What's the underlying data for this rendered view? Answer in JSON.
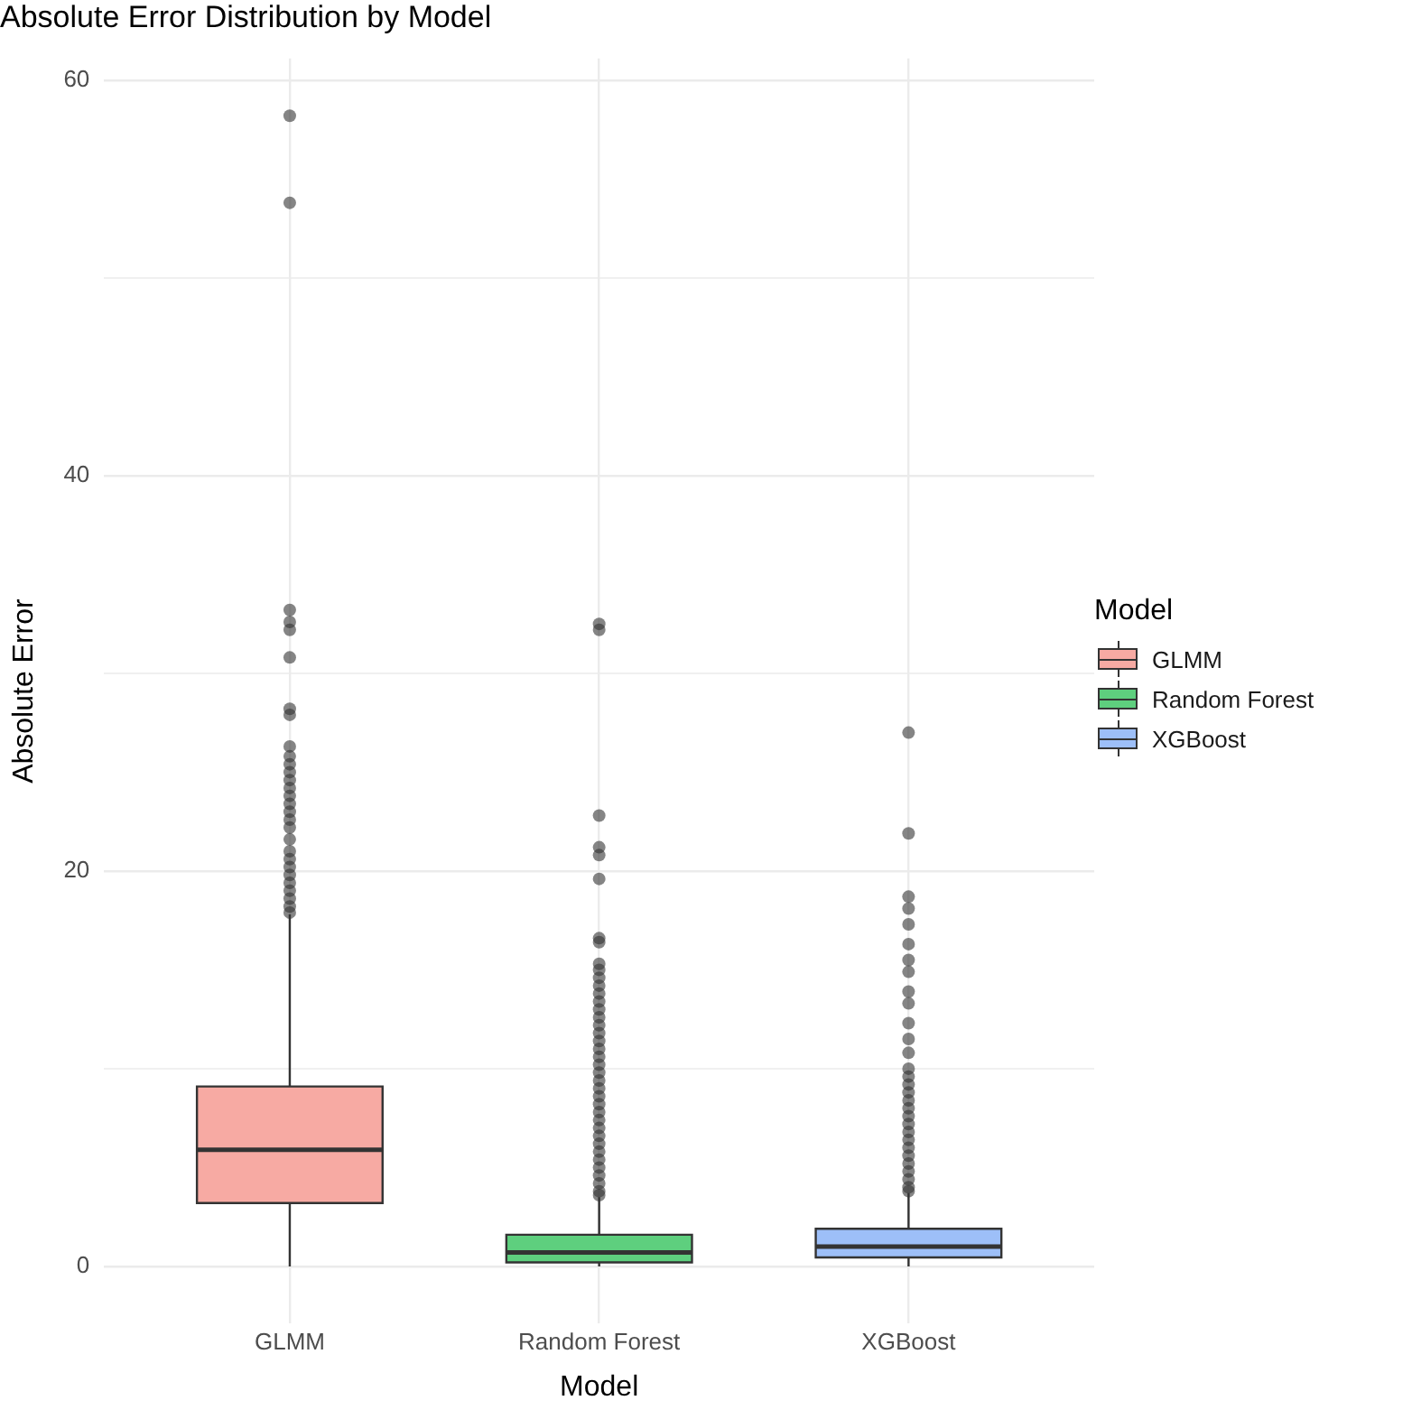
{
  "chart_data": {
    "type": "box",
    "title": "Absolute Error Distribution by Model",
    "xlabel": "Model",
    "ylabel": "Absolute Error",
    "legend_title": "Model",
    "legend": "right",
    "grid": true,
    "categories": [
      "GLMM",
      "Random Forest",
      "XGBoost"
    ],
    "ylim": [
      -2.9,
      61.1
    ],
    "yticks": [
      0,
      {
        "value": 10,
        "label": null
      },
      20,
      {
        "value": 30,
        "label": null
      },
      40,
      {
        "value": 50,
        "label": null
      },
      60
    ],
    "series": [
      {
        "name": "GLMM",
        "color": "#f7aaa3",
        "boxes": [
          {
            "low": 0,
            "q1": 3.2,
            "median": 5.9,
            "q3": 9.1,
            "high": 17.8,
            "outliers": [
              58.2,
              53.8,
              33.2,
              32.6,
              32.2,
              30.8,
              28.2,
              27.9,
              26.3,
              25.8,
              25.4,
              25.0,
              24.6,
              24.2,
              23.8,
              23.4,
              23.0,
              22.6,
              22.2,
              21.6,
              21.0,
              20.6,
              20.2,
              19.8,
              19.4,
              19.0,
              18.6,
              18.2,
              17.9
            ]
          },
          null,
          null
        ]
      },
      {
        "name": "Random Forest",
        "color": "#5ecf7e",
        "boxes": [
          null,
          {
            "low": 0,
            "q1": 0.2,
            "median": 0.7,
            "q3": 1.6,
            "high": 3.5,
            "outliers": [
              32.5,
              32.2,
              22.8,
              21.2,
              20.8,
              19.6,
              16.6,
              16.4,
              15.3,
              15.0,
              14.6,
              14.2,
              13.8,
              13.4,
              13.0,
              12.6,
              12.2,
              11.8,
              11.4,
              11.0,
              10.6,
              10.2,
              9.8,
              9.4,
              9.0,
              8.6,
              8.2,
              7.8,
              7.4,
              7.0,
              6.6,
              6.2,
              5.8,
              5.4,
              5.0,
              4.6,
              4.2,
              3.8,
              3.6
            ]
          },
          null
        ]
      },
      {
        "name": "XGBoost",
        "color": "#9dbff8",
        "boxes": [
          null,
          null,
          {
            "low": 0,
            "q1": 0.45,
            "median": 1.0,
            "q3": 1.9,
            "high": 3.7,
            "outliers": [
              27.0,
              21.9,
              18.7,
              18.1,
              17.3,
              16.3,
              15.5,
              14.9,
              13.9,
              13.3,
              12.3,
              11.5,
              10.8,
              10.0,
              9.6,
              9.2,
              8.8,
              8.4,
              8.0,
              7.6,
              7.2,
              6.8,
              6.4,
              6.0,
              5.6,
              5.2,
              4.8,
              4.4,
              4.0,
              3.8
            ]
          }
        ]
      }
    ]
  }
}
